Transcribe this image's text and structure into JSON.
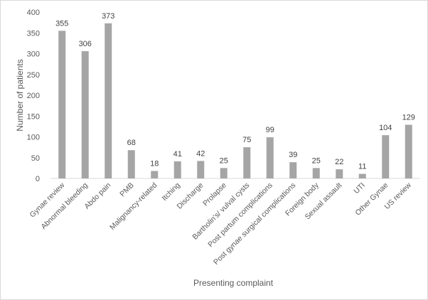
{
  "chart_data": {
    "type": "bar",
    "title": "",
    "xlabel": "Presenting complaint",
    "ylabel": "Number  of patients",
    "ylim": [
      0,
      400
    ],
    "yticks": [
      0,
      50,
      100,
      150,
      200,
      250,
      300,
      350,
      400
    ],
    "grid": false,
    "bar_color": "#a5a5a5",
    "categories": [
      "Gynae review",
      "Abnormal bleeding",
      "Abdo pain",
      "PMB",
      "Malignancy-related",
      "Itching",
      "Discharge",
      "Prolapse",
      "Bartholin's/ vulval cysts",
      "Post partum complications",
      "Post gynae surgical complications",
      "Foreign body",
      "Sexual assault",
      "UTI",
      "Other Gynae",
      "US review"
    ],
    "values": [
      355,
      306,
      373,
      68,
      18,
      41,
      42,
      25,
      75,
      99,
      39,
      25,
      22,
      11,
      104,
      129
    ]
  }
}
